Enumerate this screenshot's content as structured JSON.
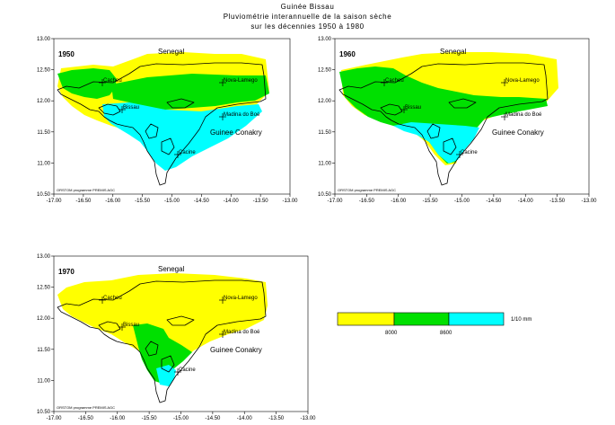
{
  "title": {
    "line1": "Guinée Bissau",
    "line2": "Pluviométrie interannuelle de la saison sèche",
    "line3": "sur les décennies 1950 à 1980"
  },
  "axes": {
    "x_ticks": [
      "-17.00",
      "-16.50",
      "-16.00",
      "-15.50",
      "-15.00",
      "-14.50",
      "-14.00",
      "-13.50",
      "-13.00"
    ],
    "y_ticks": [
      "13.00",
      "12.50",
      "12.00",
      "11.50",
      "11.00",
      "10.50"
    ]
  },
  "maps": [
    {
      "decade": "1950",
      "credit": "ORSTOM programme PREMIS AGC"
    },
    {
      "decade": "1960",
      "credit": "ORSTOM programme PREMIS AGC"
    },
    {
      "decade": "1970",
      "credit": "ORSTOM programme PREMIS AGC"
    }
  ],
  "places": {
    "senegal": "Senegal",
    "guinee": "Guinee Conakry",
    "cacheu": "Cacheu",
    "bissau": "Bissau",
    "nova": "Nova-Lamego",
    "madina": "Madina do Boé",
    "cacine": "Cacine"
  },
  "legend": {
    "unit": "1/10 mm",
    "thresholds": [
      "8000",
      "8600"
    ],
    "colors": {
      "low": "#ffff00",
      "mid": "#00e000",
      "high": "#00ffff"
    }
  }
}
